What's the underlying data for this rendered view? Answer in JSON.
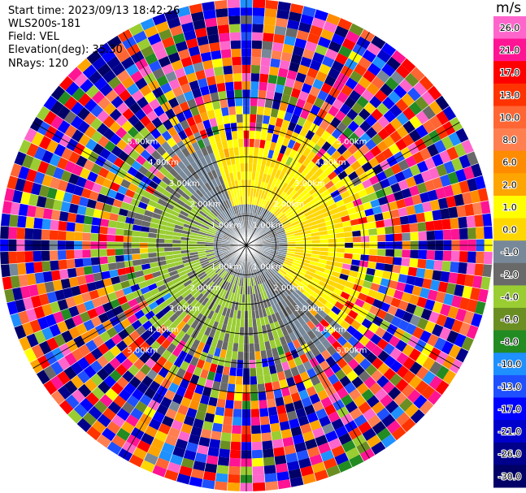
{
  "chart_data": {
    "type": "heatmap",
    "projection": "polar-ppi",
    "info": {
      "start_time": "Start time: 2023/09/13 18:42:26",
      "instrument": "WLS200s-181",
      "field": "Field: VEL",
      "elevation": "Elevation(deg): 35.30",
      "nrays": "NRays: 120"
    },
    "n_rays": 120,
    "max_range_km": 5.0,
    "range_rings_km": [
      1.0,
      2.0,
      3.0,
      4.0,
      5.0
    ],
    "ring_labels": [
      "1.00km",
      "2.00km",
      "3.00km",
      "4.00km",
      "5.00km"
    ],
    "colorbar": {
      "unit": "m/s",
      "tick_labels": [
        "26.0",
        "21.0",
        "17.0",
        "13.0",
        "10.0",
        "8.0",
        "6.0",
        "2.0",
        "1.0",
        "0.0",
        "-1.0",
        "-2.0",
        "-4.0",
        "-6.0",
        "-8.0",
        "-10.0",
        "-13.0",
        "-17.0",
        "-21.0",
        "-26.0",
        "-30.0"
      ],
      "bins": [
        {
          "min": 26.0,
          "max": 30.0,
          "color": "#ff66cc"
        },
        {
          "min": 21.0,
          "max": 26.0,
          "color": "#ff1493"
        },
        {
          "min": 17.0,
          "max": 21.0,
          "color": "#ff0000"
        },
        {
          "min": 13.0,
          "max": 17.0,
          "color": "#ff3300"
        },
        {
          "min": 10.0,
          "max": 13.0,
          "color": "#ff6633"
        },
        {
          "min": 8.0,
          "max": 10.0,
          "color": "#ff7f50"
        },
        {
          "min": 6.0,
          "max": 8.0,
          "color": "#ff8c00"
        },
        {
          "min": 2.0,
          "max": 6.0,
          "color": "#ffa500"
        },
        {
          "min": 1.0,
          "max": 2.0,
          "color": "#ffff00"
        },
        {
          "min": 0.0,
          "max": 1.0,
          "color": "#ffd700"
        },
        {
          "min": -1.0,
          "max": 0.0,
          "color": "#778899"
        },
        {
          "min": -2.0,
          "max": -1.0,
          "color": "#696969"
        },
        {
          "min": -4.0,
          "max": -2.0,
          "color": "#9acd32"
        },
        {
          "min": -6.0,
          "max": -4.0,
          "color": "#6b8e23"
        },
        {
          "min": -8.0,
          "max": -6.0,
          "color": "#228b22"
        },
        {
          "min": -10.0,
          "max": -8.0,
          "color": "#1e90ff"
        },
        {
          "min": -13.0,
          "max": -10.0,
          "color": "#1e50ff"
        },
        {
          "min": -17.0,
          "max": -13.0,
          "color": "#0000ff"
        },
        {
          "min": -21.0,
          "max": -17.0,
          "color": "#0000cd"
        },
        {
          "min": -26.0,
          "max": -21.0,
          "color": "#00008b"
        },
        {
          "min": -30.0,
          "max": -26.0,
          "color": "#000066"
        }
      ]
    },
    "grid": true
  }
}
